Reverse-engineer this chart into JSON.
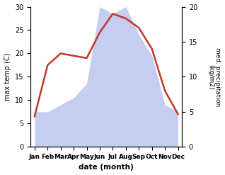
{
  "months": [
    "Jan",
    "Feb",
    "Mar",
    "Apr",
    "May",
    "Jun",
    "Jul",
    "Aug",
    "Sep",
    "Oct",
    "Nov",
    "Dec"
  ],
  "temperature": [
    6.5,
    17.5,
    20.0,
    19.5,
    19.0,
    24.5,
    28.5,
    27.5,
    25.5,
    21.0,
    12.0,
    7.0
  ],
  "precipitation": [
    5.0,
    5.0,
    6.0,
    7.0,
    9.0,
    20.0,
    19.0,
    20.0,
    16.0,
    13.0,
    6.0,
    5.0
  ],
  "temp_color": "#c0392b",
  "precip_color": "#c5cef0",
  "temp_ylim": [
    0,
    30
  ],
  "precip_ylim": [
    0,
    20
  ],
  "ylabel_left": "max temp (C)",
  "ylabel_right": "med. precipitation\n(kg/m2)",
  "xlabel": "date (month)",
  "right_yticks": [
    0,
    5,
    10,
    15,
    20
  ],
  "left_yticks": [
    0,
    5,
    10,
    15,
    20,
    25,
    30
  ]
}
